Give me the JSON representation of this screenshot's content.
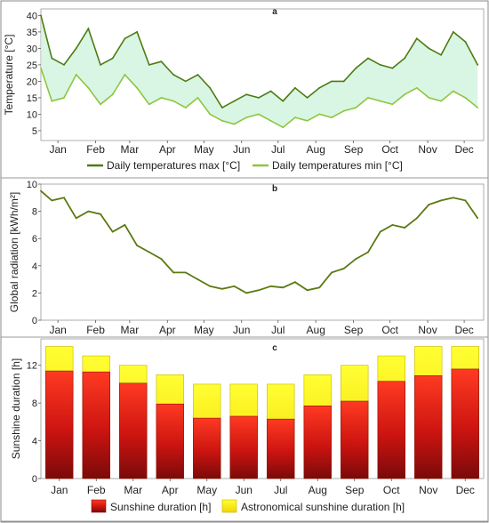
{
  "chart_data": [
    {
      "panel": "a",
      "type": "line",
      "ylabel": "Temperature [°C]",
      "ylim": [
        2,
        42
      ],
      "yticks": [
        5,
        10,
        15,
        20,
        25,
        30,
        35,
        40
      ],
      "xticks": [
        "Jan",
        "Feb",
        "Mar",
        "Apr",
        "May",
        "Jun",
        "Jul",
        "Aug",
        "Sep",
        "Oct",
        "Nov",
        "Dec"
      ],
      "legend_position": "bottom",
      "series": [
        {
          "name": "Daily temperatures max [°C]",
          "color": "#4f7a12",
          "x": [
            1,
            10,
            20,
            30,
            40,
            50,
            60,
            70,
            80,
            90,
            100,
            110,
            120,
            130,
            140,
            150,
            160,
            170,
            180,
            190,
            200,
            210,
            220,
            230,
            240,
            250,
            260,
            270,
            280,
            290,
            300,
            310,
            320,
            330,
            340,
            350,
            360
          ],
          "values": [
            40,
            27,
            25,
            30,
            36,
            25,
            27,
            33,
            35,
            25,
            26,
            22,
            20,
            22,
            18,
            12,
            14,
            16,
            15,
            17,
            14,
            18,
            15,
            18,
            20,
            20,
            24,
            27,
            25,
            24,
            27,
            33,
            30,
            28,
            35,
            32,
            25
          ]
        },
        {
          "name": "Daily temperatures min [°C]",
          "color": "#8cc63f",
          "x": [
            1,
            10,
            20,
            30,
            40,
            50,
            60,
            70,
            80,
            90,
            100,
            110,
            120,
            130,
            140,
            150,
            160,
            170,
            180,
            190,
            200,
            210,
            220,
            230,
            240,
            250,
            260,
            270,
            280,
            290,
            300,
            310,
            320,
            330,
            340,
            350,
            360
          ],
          "values": [
            24,
            14,
            15,
            22,
            18,
            13,
            16,
            22,
            18,
            13,
            15,
            14,
            12,
            15,
            10,
            8,
            7,
            9,
            10,
            8,
            6,
            9,
            8,
            10,
            9,
            11,
            12,
            15,
            14,
            13,
            16,
            18,
            15,
            14,
            17,
            15,
            12
          ]
        }
      ]
    },
    {
      "panel": "b",
      "type": "line",
      "ylabel": "Global radiation [kWh/m²]",
      "ylim": [
        0,
        10
      ],
      "yticks": [
        0,
        2,
        4,
        6,
        8,
        10
      ],
      "xticks": [
        "Jan",
        "Feb",
        "Mar",
        "Apr",
        "May",
        "Jun",
        "Jul",
        "Aug",
        "Sep",
        "Oct",
        "Nov",
        "Dec"
      ],
      "series": [
        {
          "color": "#5a7a12",
          "x": [
            1,
            10,
            20,
            30,
            40,
            50,
            60,
            70,
            80,
            90,
            100,
            110,
            120,
            130,
            140,
            150,
            160,
            170,
            180,
            190,
            200,
            210,
            220,
            230,
            240,
            250,
            260,
            270,
            280,
            290,
            300,
            310,
            320,
            330,
            340,
            350,
            360
          ],
          "values": [
            9.5,
            8.8,
            9,
            7.5,
            8,
            7.8,
            6.5,
            7,
            5.5,
            5,
            4.5,
            3.5,
            3.5,
            3,
            2.5,
            2.3,
            2.5,
            2,
            2.2,
            2.5,
            2.4,
            2.8,
            2.2,
            2.4,
            3.5,
            3.8,
            4.5,
            5,
            6.5,
            7,
            6.8,
            7.5,
            8.5,
            8.8,
            9,
            8.8,
            7.5
          ]
        }
      ]
    },
    {
      "panel": "c",
      "type": "bar",
      "ylabel": "Sunshine duration [h]",
      "ylim": [
        0,
        14.8
      ],
      "yticks": [
        0,
        4,
        8,
        12
      ],
      "categories": [
        "Jan",
        "Feb",
        "Mar",
        "Apr",
        "May",
        "Jun",
        "Jul",
        "Aug",
        "Sep",
        "Oct",
        "Nov",
        "Dec"
      ],
      "legend_position": "bottom",
      "series": [
        {
          "name": "Sunshine duration [h]",
          "color": "#e8201c",
          "values": [
            11.4,
            11.3,
            10.1,
            7.9,
            6.4,
            6.6,
            6.3,
            7.7,
            8.2,
            10.3,
            10.9,
            11.6
          ]
        },
        {
          "name": "Astronomical sunshine duration [h]",
          "color": "#ffff00",
          "values": [
            14,
            13,
            12,
            11,
            10,
            10,
            10,
            11,
            12,
            13,
            14,
            14
          ]
        }
      ]
    }
  ]
}
